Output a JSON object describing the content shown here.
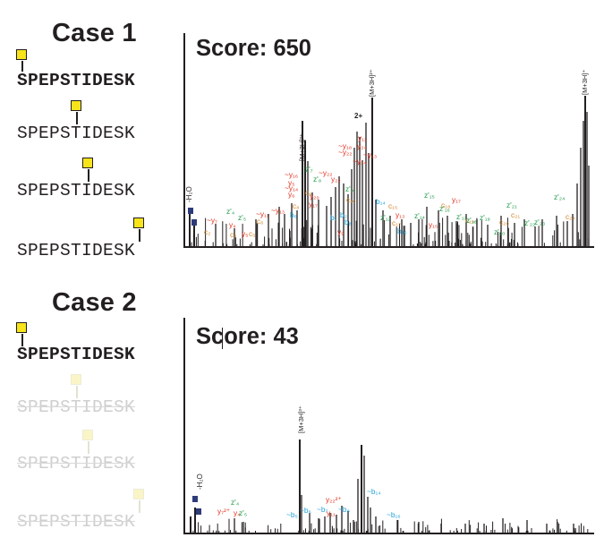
{
  "colors": {
    "c_ion": "#d4862b",
    "z_ion": "#1f9b48",
    "y_ion": "#e0301e",
    "b_ion": "#22a2d8",
    "glycan": "#f7e41a",
    "glycan_faded": "#faf5c6",
    "oxonium_marker": "#2e3b7a",
    "ink": "#231f20"
  },
  "icons": [
    "hexnac-square-icon"
  ],
  "case1": {
    "title": "Case 1",
    "score": "Score: 650",
    "sequences": [
      "SPEPSTIDESK",
      "SPEPSTIDESK",
      "SPEPSTIDESK",
      "SPEPSTIDESK"
    ],
    "labels": {
      "h2o": "-H₂O",
      "charge2": "2+",
      "m3h3": "[M+3H]³⁺",
      "m3h2": "[M+3H]²⁺",
      "m3h1": "[M+3H]⁺"
    },
    "fragments": [
      {
        "t": "c",
        "s": "c₂"
      },
      {
        "t": "y",
        "s": "~y₇"
      },
      {
        "t": "z",
        "s": "z'₄"
      },
      {
        "t": "y",
        "s": "y₄"
      },
      {
        "t": "c",
        "s": "c₃"
      },
      {
        "t": "z",
        "s": "z'₅"
      },
      {
        "t": "y",
        "s": "y₅"
      },
      {
        "t": "c",
        "s": "c₅"
      },
      {
        "t": "c",
        "s": "c₆"
      },
      {
        "t": "y",
        "s": "~y₁₁"
      },
      {
        "t": "y",
        "s": "~y₁₃"
      },
      {
        "t": "y",
        "s": "~y₁₄"
      },
      {
        "t": "y",
        "s": "~y₁₆"
      },
      {
        "t": "y",
        "s": "y₅"
      },
      {
        "t": "y",
        "s": "y₆"
      },
      {
        "t": "c",
        "s": "c₉"
      },
      {
        "t": "c",
        "s": "c₈"
      },
      {
        "t": "b",
        "s": "b₆"
      },
      {
        "t": "z",
        "s": "z'₇"
      },
      {
        "t": "z",
        "s": "z'₈"
      },
      {
        "t": "y",
        "s": "~y₂₂"
      },
      {
        "t": "y",
        "s": "y₁₇"
      },
      {
        "t": "y",
        "s": "y₂₀"
      },
      {
        "t": "y",
        "s": "y₂₂"
      },
      {
        "t": "z",
        "s": "z'₉"
      },
      {
        "t": "c",
        "s": "c₁₀"
      },
      {
        "t": "b",
        "s": "b₇"
      },
      {
        "t": "y",
        "s": "~y₁₈"
      },
      {
        "t": "b",
        "s": "b₈"
      },
      {
        "t": "y",
        "s": "y₉"
      },
      {
        "t": "y",
        "s": "~y₂₂"
      },
      {
        "t": "y",
        "s": "y₁₁"
      },
      {
        "t": "y",
        "s": "~y₂₄"
      },
      {
        "t": "y",
        "s": "~y₁₃"
      },
      {
        "t": "y",
        "s": "y₂₄"
      },
      {
        "t": "b",
        "s": "b₁₄"
      },
      {
        "t": "c",
        "s": "c₁₅"
      },
      {
        "t": "z",
        "s": "z'₁₂"
      },
      {
        "t": "y",
        "s": "y₁₃"
      },
      {
        "t": "b",
        "s": "b₁₆"
      },
      {
        "t": "z",
        "s": "z'₁₄"
      },
      {
        "t": "c",
        "s": "c₁₇"
      },
      {
        "t": "z",
        "s": "z'₁₅"
      },
      {
        "t": "c",
        "s": "c₁₈"
      },
      {
        "t": "z",
        "s": "z'₁₆"
      },
      {
        "t": "y",
        "s": "y₁₇"
      },
      {
        "t": "y",
        "s": "y₁₅"
      },
      {
        "t": "z",
        "s": "z'₁₇"
      },
      {
        "t": "c",
        "s": "c₁₉"
      },
      {
        "t": "z",
        "s": "z'₁₈"
      },
      {
        "t": "z",
        "s": "z'₁₉"
      },
      {
        "t": "c",
        "s": "c₂₀"
      },
      {
        "t": "z",
        "s": "z'₂₀"
      },
      {
        "t": "z",
        "s": "z'₂₁"
      },
      {
        "t": "c",
        "s": "c₂₁"
      },
      {
        "t": "z",
        "s": "z'₂₂"
      },
      {
        "t": "z",
        "s": "z'₂₃"
      },
      {
        "t": "z",
        "s": "z'₂₄"
      },
      {
        "t": "c",
        "s": "c₂₄"
      },
      {
        "t": "b",
        "s": "b₂"
      }
    ]
  },
  "case2": {
    "title": "Case 2",
    "score": "Score: 43",
    "sequences": [
      "SPEPSTIDESK",
      "SPEPSTIDESK",
      "SPEPSTIDESK",
      "SPEPSTIDESK"
    ],
    "labels": {
      "h2o": "-H₂O",
      "m3h3": "[M+3H]³⁺"
    },
    "fragments": [
      {
        "t": "y",
        "s": "y₇²⁺"
      },
      {
        "t": "y",
        "s": "y₄"
      },
      {
        "t": "z",
        "s": "z'₄"
      },
      {
        "t": "z",
        "s": "z'₅"
      },
      {
        "t": "b",
        "s": "~b₅"
      },
      {
        "t": "b",
        "s": "~b₆"
      },
      {
        "t": "b",
        "s": "~b₇"
      },
      {
        "t": "y",
        "s": "y₁₁"
      },
      {
        "t": "y",
        "s": "y₂₂²⁺"
      },
      {
        "t": "b",
        "s": "~b₈"
      },
      {
        "t": "b",
        "s": "~b₁₄"
      },
      {
        "t": "b",
        "s": "~b₁₆"
      }
    ]
  }
}
